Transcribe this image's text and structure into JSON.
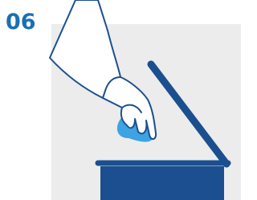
{
  "step": "06"
}
